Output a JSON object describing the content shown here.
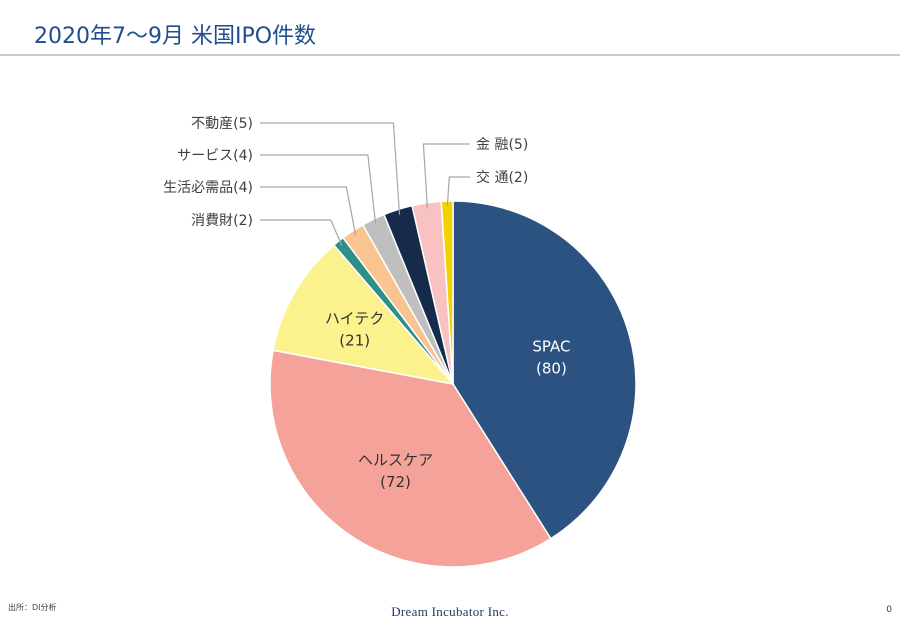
{
  "header": {
    "title": "2020年7～9月 米国IPO件数"
  },
  "footer": {
    "source": "出所：DI分析",
    "company": "Dream Incubator Inc.",
    "page_number": "0"
  },
  "chart_data": {
    "type": "pie",
    "title": "2020年7～9月 米国IPO件数",
    "slices": [
      {
        "label": "SPAC",
        "value": 80,
        "color": "#2b5281",
        "label_style": "inside-light"
      },
      {
        "label": "ヘルスケア",
        "value": 72,
        "color": "#f5a29b",
        "label_style": "inside-dark"
      },
      {
        "label": "ハイテク",
        "value": 21,
        "color": "#fbf28e",
        "label_style": "inside-dark"
      },
      {
        "label": "消費財",
        "value": 2,
        "color": "#2e8f86",
        "label_style": "callout-left"
      },
      {
        "label": "生活必需品",
        "value": 4,
        "color": "#f9c48f",
        "label_style": "callout-left"
      },
      {
        "label": "サービス",
        "value": 4,
        "color": "#bfbfbf",
        "label_style": "callout-left"
      },
      {
        "label": "不動産",
        "value": 5,
        "color": "#162b4a",
        "label_style": "callout-left"
      },
      {
        "label": "金 融",
        "value": 5,
        "color": "#f9c2c2",
        "label_style": "callout-right"
      },
      {
        "label": "交 通",
        "value": 2,
        "color": "#f2d300",
        "label_style": "callout-right"
      }
    ]
  }
}
